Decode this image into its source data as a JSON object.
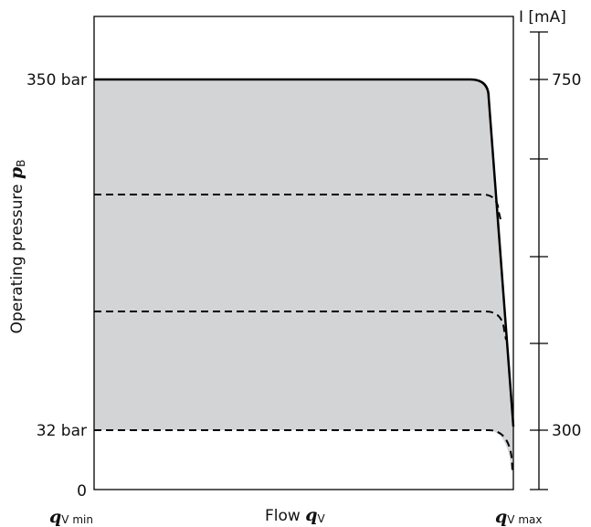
{
  "left_axis": {
    "labels": [
      "350 bar",
      "32 bar",
      "0"
    ]
  },
  "y_axis_label": {
    "text": "Operating pressure ",
    "symbol": "p",
    "subscript": "B"
  },
  "x_axis": {
    "min": {
      "symbol": "q",
      "subscript": "V min"
    },
    "label": {
      "text": "Flow ",
      "symbol": "q",
      "subscript": "V"
    },
    "max": {
      "symbol": "q",
      "subscript": "V max"
    }
  },
  "right_axis": {
    "title": "I [mA]",
    "labels": [
      "750",
      "300"
    ]
  }
}
